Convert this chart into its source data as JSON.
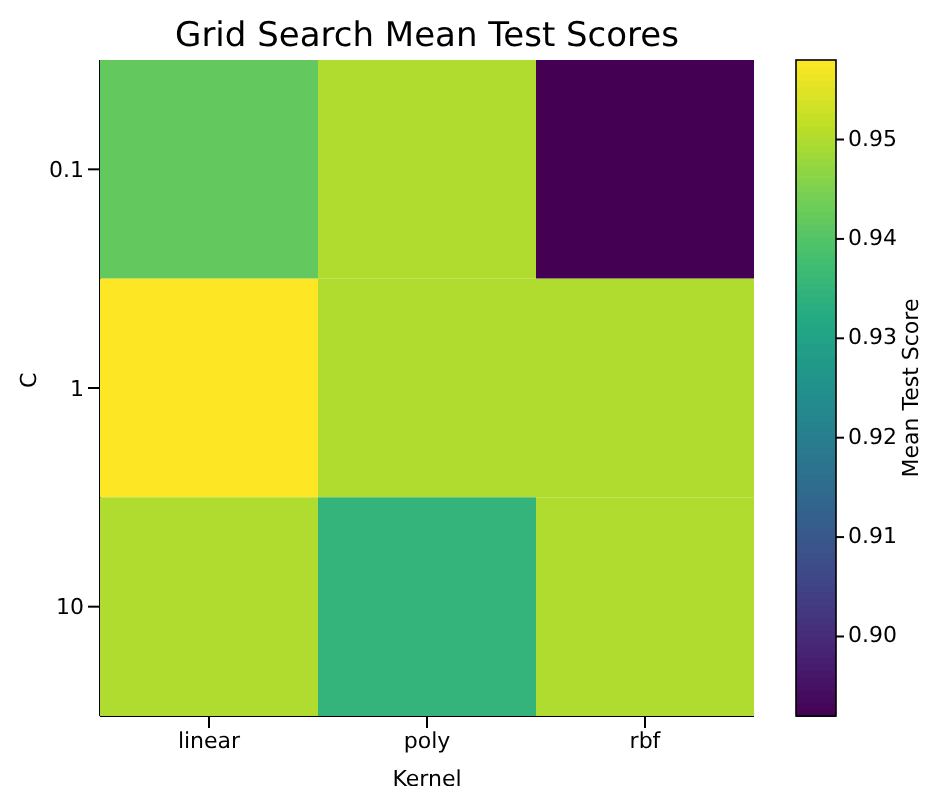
{
  "chart_data": {
    "type": "heatmap",
    "title": "Grid Search Mean Test Scores",
    "xlabel": "Kernel",
    "ylabel": "C",
    "clabel": "Mean Test Score",
    "categories": [
      "linear",
      "poly",
      "rbf"
    ],
    "y_categories": [
      "0.1",
      "1",
      "10"
    ],
    "cells": [
      [
        0.942,
        0.95,
        0.892
      ],
      [
        0.958,
        0.95,
        0.95
      ],
      [
        0.95,
        0.935,
        0.95
      ]
    ],
    "clim": [
      0.892,
      0.958
    ],
    "cticks": [
      {
        "value": 0.9,
        "label": "0.90"
      },
      0.91,
      0.92,
      0.93,
      0.94,
      0.95
    ]
  }
}
